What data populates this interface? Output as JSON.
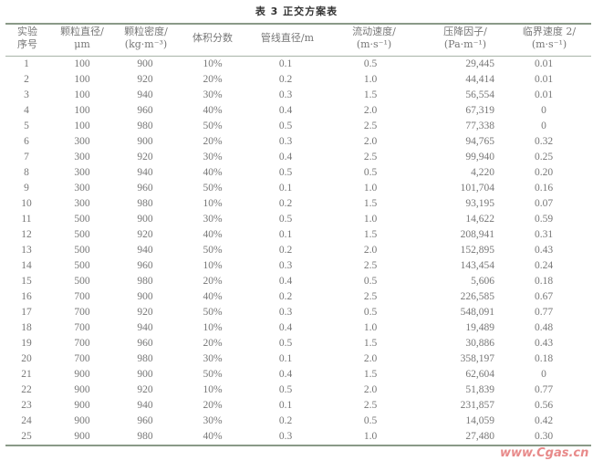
{
  "title": "表 3   正交方案表",
  "columns": [
    "实验\n序号",
    "颗粒直径/\nμm",
    "颗粒密度/\n(kg·m⁻³)",
    "体积分数",
    "管线直径/m",
    "流动速度/\n(m·s⁻¹)",
    "压降因子/\n(Pa·m⁻¹)",
    "临界速度 2/\n(m·s⁻¹)"
  ],
  "rows": [
    [
      "1",
      "100",
      "900",
      "10%",
      "0.1",
      "0.5",
      "29,445",
      "0.01"
    ],
    [
      "2",
      "100",
      "920",
      "20%",
      "0.2",
      "1.0",
      "44,414",
      "0.01"
    ],
    [
      "3",
      "100",
      "940",
      "30%",
      "0.3",
      "1.5",
      "56,554",
      "0.01"
    ],
    [
      "4",
      "100",
      "960",
      "40%",
      "0.4",
      "2.0",
      "67,319",
      "0"
    ],
    [
      "5",
      "100",
      "980",
      "50%",
      "0.5",
      "2.5",
      "77,338",
      "0"
    ],
    [
      "6",
      "300",
      "900",
      "20%",
      "0.3",
      "2.0",
      "94,765",
      "0.32"
    ],
    [
      "7",
      "300",
      "920",
      "30%",
      "0.4",
      "2.5",
      "99,940",
      "0.25"
    ],
    [
      "8",
      "300",
      "940",
      "40%",
      "0.5",
      "0.5",
      "4,220",
      "0.20"
    ],
    [
      "9",
      "300",
      "960",
      "50%",
      "0.1",
      "1.0",
      "101,704",
      "0.16"
    ],
    [
      "10",
      "300",
      "980",
      "10%",
      "0.2",
      "1.5",
      "93,195",
      "0.07"
    ],
    [
      "11",
      "500",
      "900",
      "30%",
      "0.5",
      "1.0",
      "14,622",
      "0.59"
    ],
    [
      "12",
      "500",
      "920",
      "40%",
      "0.1",
      "1.5",
      "208,941",
      "0.31"
    ],
    [
      "13",
      "500",
      "940",
      "50%",
      "0.2",
      "2.0",
      "152,895",
      "0.43"
    ],
    [
      "14",
      "500",
      "960",
      "10%",
      "0.3",
      "2.5",
      "143,454",
      "0.24"
    ],
    [
      "15",
      "500",
      "980",
      "20%",
      "0.4",
      "0.5",
      "5,606",
      "0.18"
    ],
    [
      "16",
      "700",
      "900",
      "40%",
      "0.2",
      "2.5",
      "226,585",
      "0.67"
    ],
    [
      "17",
      "700",
      "920",
      "50%",
      "0.3",
      "0.5",
      "548,091",
      "0.77"
    ],
    [
      "18",
      "700",
      "940",
      "10%",
      "0.4",
      "1.0",
      "19,489",
      "0.48"
    ],
    [
      "19",
      "700",
      "960",
      "20%",
      "0.5",
      "1.5",
      "30,886",
      "0.43"
    ],
    [
      "20",
      "700",
      "980",
      "30%",
      "0.1",
      "2.0",
      "358,197",
      "0.18"
    ],
    [
      "21",
      "900",
      "900",
      "50%",
      "0.4",
      "1.5",
      "62,604",
      "0"
    ],
    [
      "22",
      "900",
      "920",
      "10%",
      "0.5",
      "2.0",
      "51,839",
      "0.77"
    ],
    [
      "23",
      "900",
      "940",
      "20%",
      "0.1",
      "2.5",
      "231,857",
      "0.56"
    ],
    [
      "24",
      "900",
      "960",
      "30%",
      "0.2",
      "0.5",
      "14,059",
      "0.42"
    ],
    [
      "25",
      "900",
      "980",
      "40%",
      "0.3",
      "1.0",
      "27,480",
      "0.30"
    ]
  ],
  "watermark": "www.Cgas.cn"
}
